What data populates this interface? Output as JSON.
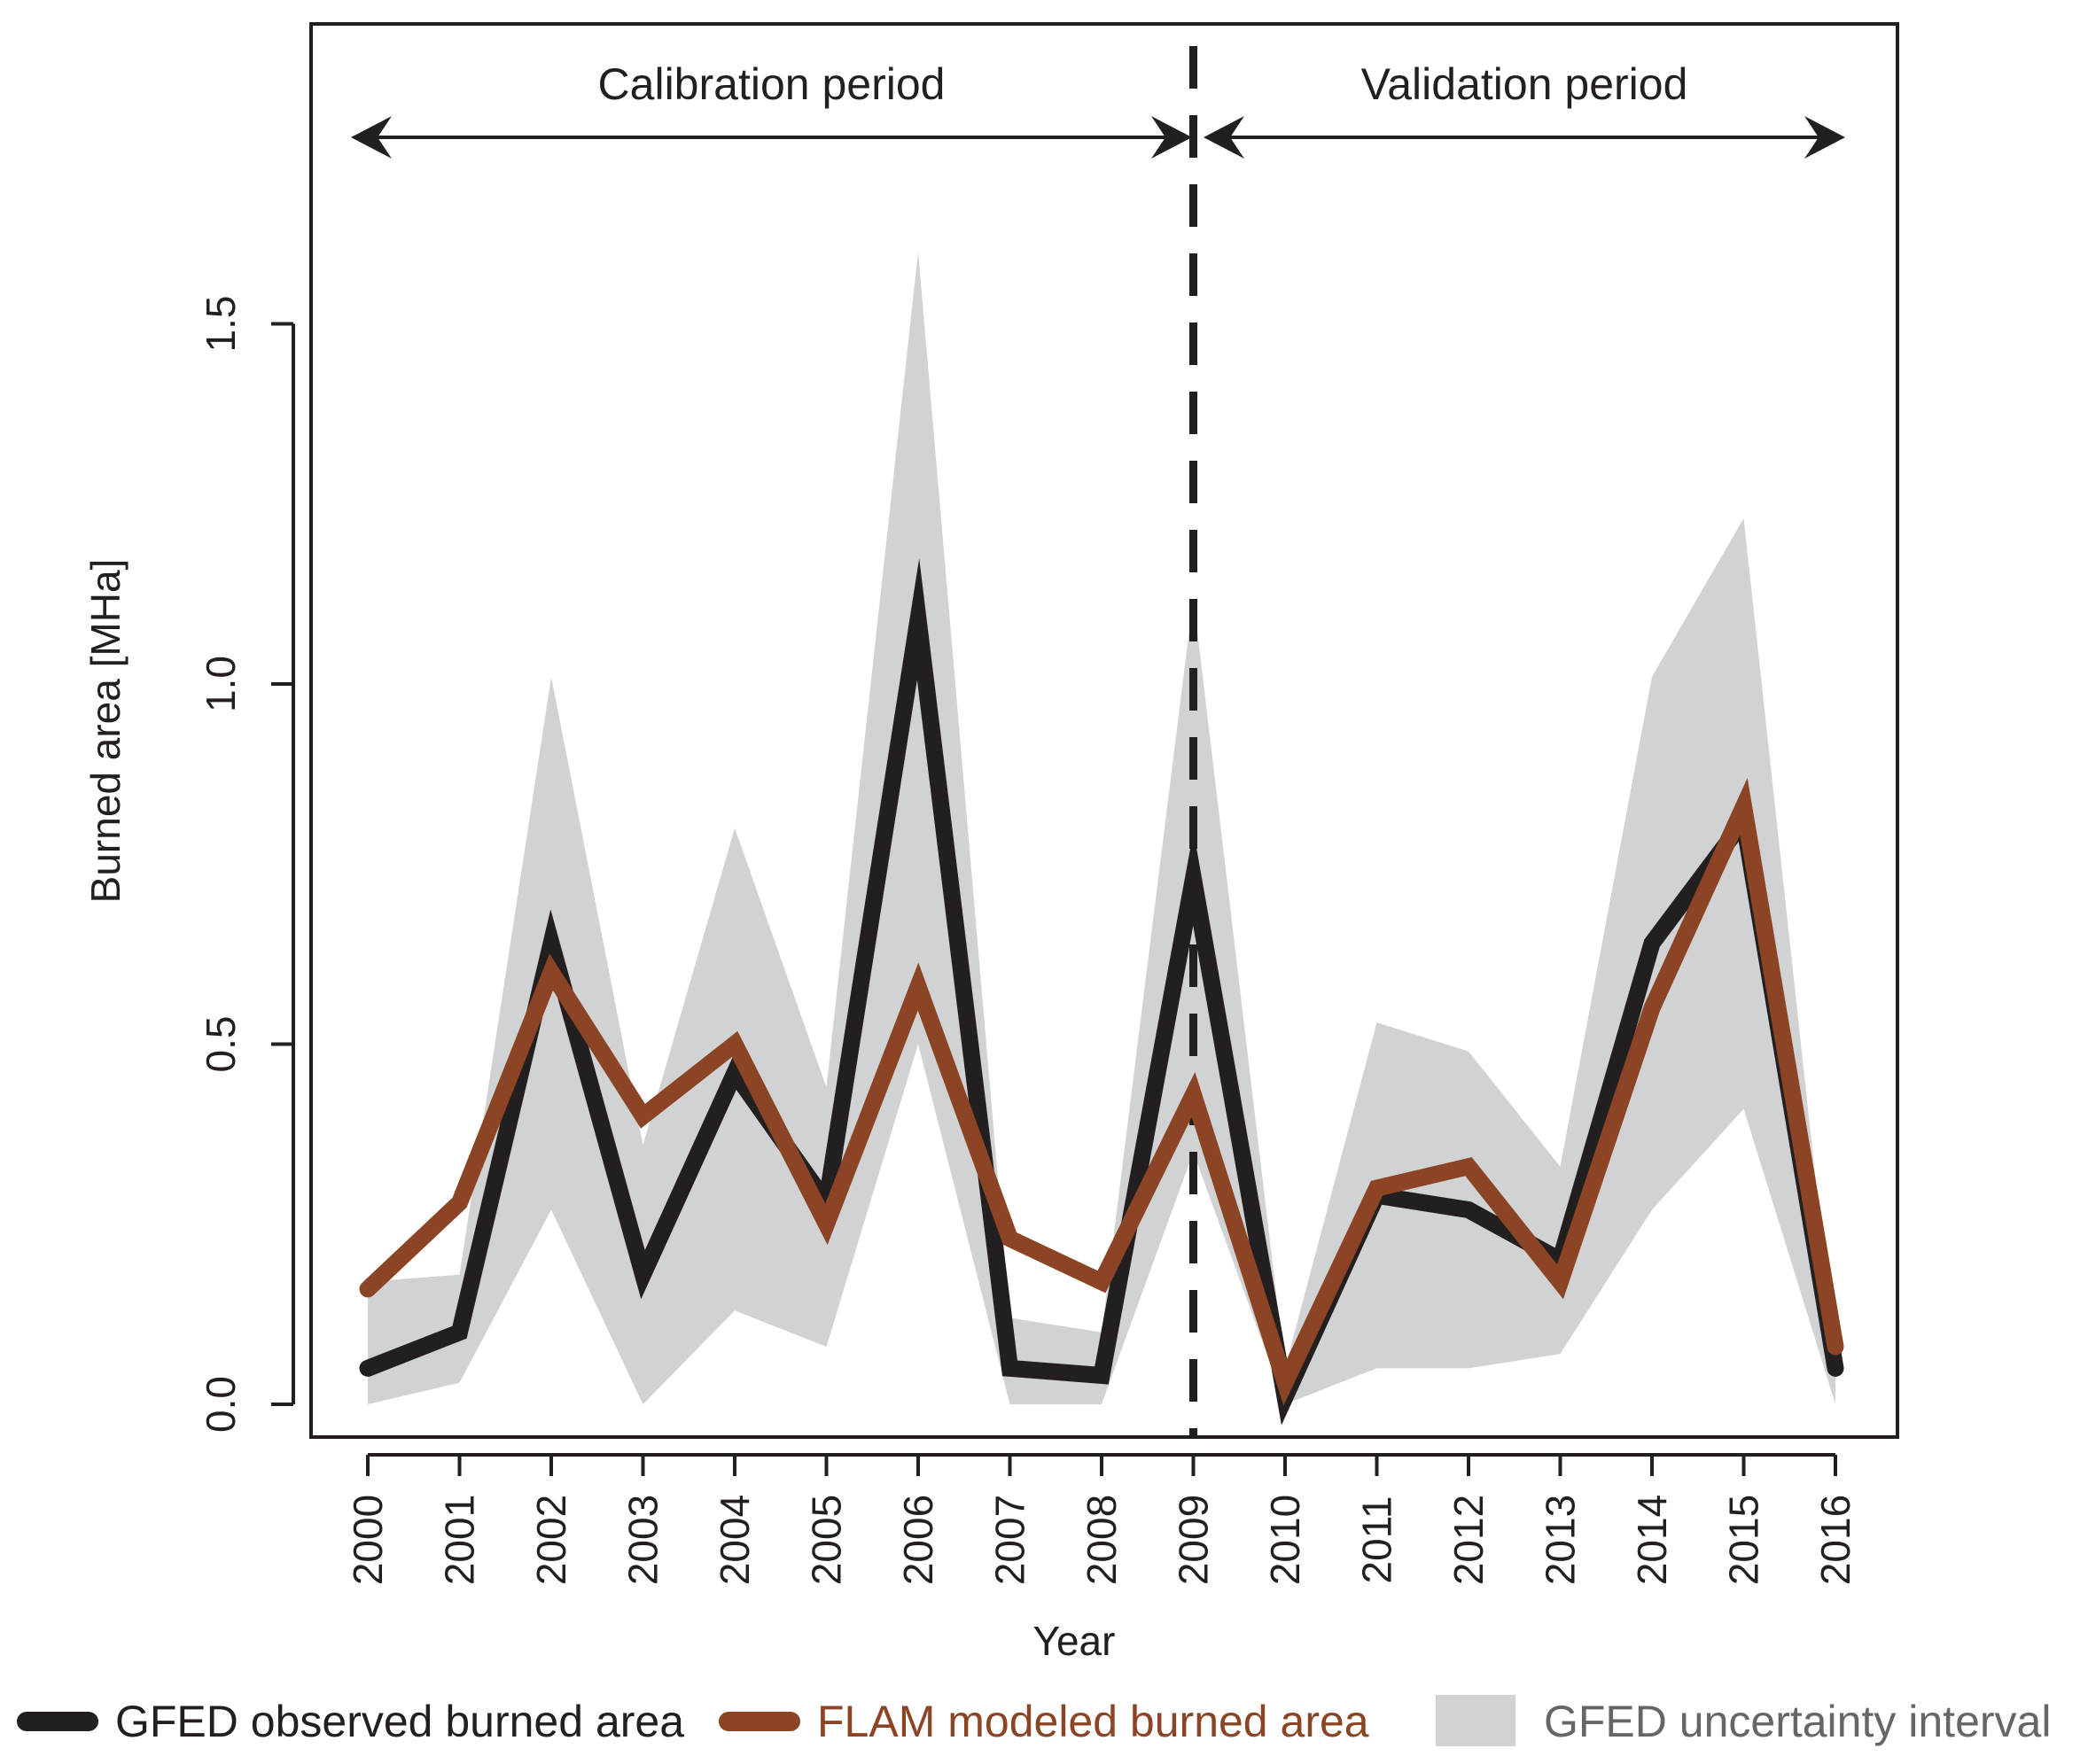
{
  "chart_data": {
    "type": "line",
    "title": "",
    "xlabel": "Year",
    "ylabel": "Burned area [MHa]",
    "x": [
      "2000",
      "2001",
      "2002",
      "2003",
      "2004",
      "2005",
      "2006",
      "2007",
      "2008",
      "2009",
      "2010",
      "2011",
      "2012",
      "2013",
      "2014",
      "2015",
      "2016"
    ],
    "ylim": [
      -0.04,
      1.92
    ],
    "yticks": [
      "0.0",
      "0.5",
      "1.0",
      "1.5"
    ],
    "ytick_values": [
      0.0,
      0.5,
      1.0,
      1.5
    ],
    "series": [
      {
        "name": "GFED observed burned area",
        "color": "#231f20",
        "values": [
          0.05,
          0.1,
          0.64,
          0.18,
          0.46,
          0.28,
          1.09,
          0.05,
          0.04,
          0.73,
          0.01,
          0.29,
          0.27,
          0.2,
          0.64,
          0.81,
          0.05
        ]
      },
      {
        "name": "FLAM modeled burned area",
        "color": "#8b4424",
        "values": [
          0.16,
          0.28,
          0.6,
          0.4,
          0.5,
          0.25,
          0.58,
          0.23,
          0.17,
          0.43,
          0.03,
          0.3,
          0.33,
          0.17,
          0.55,
          0.83,
          0.08
        ]
      }
    ],
    "uncertainty": {
      "name": "GFED uncertainty interval",
      "color": "#d1d2d4",
      "lower": [
        0.0,
        0.03,
        0.27,
        0.0,
        0.13,
        0.08,
        0.5,
        0.0,
        0.0,
        0.35,
        0.0,
        0.05,
        0.05,
        0.07,
        0.27,
        0.41,
        0.0
      ],
      "upper": [
        0.17,
        0.18,
        1.01,
        0.36,
        0.8,
        0.44,
        1.6,
        0.12,
        0.1,
        1.12,
        0.05,
        0.53,
        0.49,
        0.33,
        1.01,
        1.23,
        0.06
      ]
    },
    "divider_year": "2009",
    "annotations": [
      {
        "text": "Calibration period",
        "from": "2000",
        "to": "2009"
      },
      {
        "text": "Validation period",
        "from": "2009",
        "to": "2016"
      }
    ],
    "legend": {
      "placement": "bottom",
      "items": [
        {
          "label": "GFED observed burned area",
          "color": "#231f20",
          "kind": "line"
        },
        {
          "label": "FLAM modeled burned area",
          "color": "#8b4424",
          "kind": "line"
        },
        {
          "label": "GFED uncertainty interval",
          "color": "#d1d2d4",
          "kind": "patch"
        }
      ]
    },
    "grid": false
  }
}
